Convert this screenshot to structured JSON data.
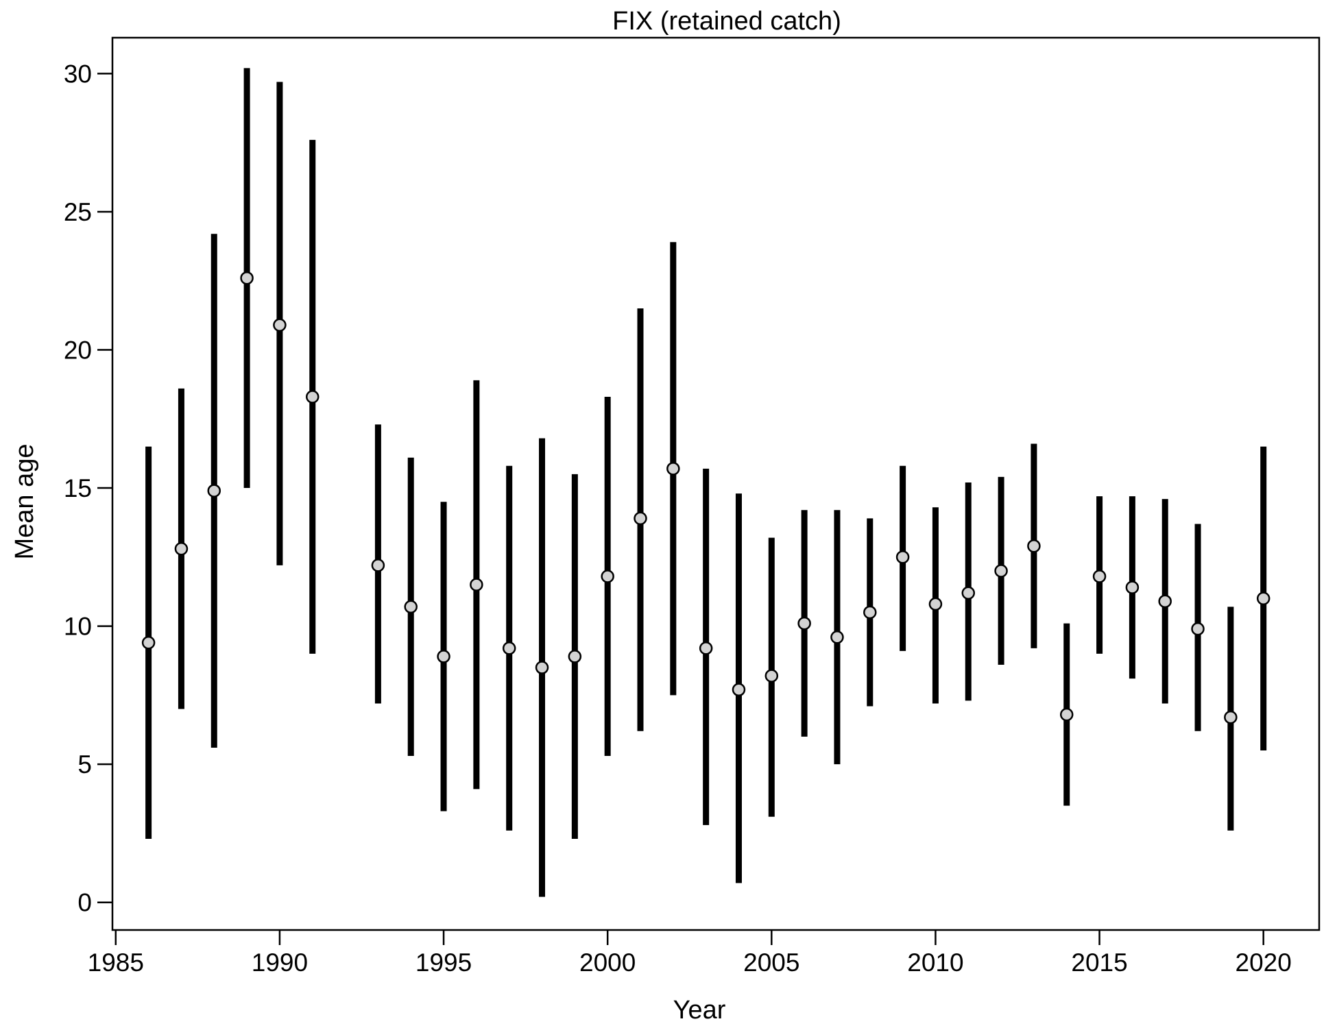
{
  "chart_data": {
    "type": "scatter",
    "title": "FIX (retained catch)",
    "xlabel": "Year",
    "ylabel": "Mean age",
    "xlim": [
      1984.9,
      2021.7
    ],
    "ylim": [
      -1.0,
      31.3
    ],
    "x_ticks": [
      "1985",
      "1990",
      "1995",
      "2000",
      "2005",
      "2010",
      "2015",
      "2020"
    ],
    "y_ticks": [
      "0",
      "5",
      "10",
      "15",
      "20",
      "25",
      "30"
    ],
    "grid": false,
    "legend": "none",
    "marker": {
      "fill": "#d3d3d3",
      "stroke": "#000000"
    },
    "interval_color": "#000000",
    "series": [
      {
        "points": [
          {
            "x": 1986,
            "y": 9.4,
            "low": 2.3,
            "high": 16.5
          },
          {
            "x": 1987,
            "y": 12.8,
            "low": 7.0,
            "high": 18.6
          },
          {
            "x": 1988,
            "y": 14.9,
            "low": 5.6,
            "high": 24.2
          },
          {
            "x": 1989,
            "y": 22.6,
            "low": 15.0,
            "high": 30.2
          },
          {
            "x": 1990,
            "y": 20.9,
            "low": 12.2,
            "high": 29.7
          },
          {
            "x": 1991,
            "y": 18.3,
            "low": 9.0,
            "high": 27.6
          },
          {
            "x": 1993,
            "y": 12.2,
            "low": 7.2,
            "high": 17.3
          },
          {
            "x": 1994,
            "y": 10.7,
            "low": 5.3,
            "high": 16.1
          },
          {
            "x": 1995,
            "y": 8.9,
            "low": 3.3,
            "high": 14.5
          },
          {
            "x": 1996,
            "y": 11.5,
            "low": 4.1,
            "high": 18.9
          },
          {
            "x": 1997,
            "y": 9.2,
            "low": 2.6,
            "high": 15.8
          },
          {
            "x": 1998,
            "y": 8.5,
            "low": 0.2,
            "high": 16.8
          },
          {
            "x": 1999,
            "y": 8.9,
            "low": 2.3,
            "high": 15.5
          },
          {
            "x": 2000,
            "y": 11.8,
            "low": 5.3,
            "high": 18.3
          },
          {
            "x": 2001,
            "y": 13.9,
            "low": 6.2,
            "high": 21.5
          },
          {
            "x": 2002,
            "y": 15.7,
            "low": 7.5,
            "high": 23.9
          },
          {
            "x": 2003,
            "y": 9.2,
            "low": 2.8,
            "high": 15.7
          },
          {
            "x": 2004,
            "y": 7.7,
            "low": 0.7,
            "high": 14.8
          },
          {
            "x": 2005,
            "y": 8.2,
            "low": 3.1,
            "high": 13.2
          },
          {
            "x": 2006,
            "y": 10.1,
            "low": 6.0,
            "high": 14.2
          },
          {
            "x": 2007,
            "y": 9.6,
            "low": 5.0,
            "high": 14.2
          },
          {
            "x": 2008,
            "y": 10.5,
            "low": 7.1,
            "high": 13.9
          },
          {
            "x": 2009,
            "y": 12.5,
            "low": 9.1,
            "high": 15.8
          },
          {
            "x": 2010,
            "y": 10.8,
            "low": 7.2,
            "high": 14.3
          },
          {
            "x": 2011,
            "y": 11.2,
            "low": 7.3,
            "high": 15.2
          },
          {
            "x": 2012,
            "y": 12.0,
            "low": 8.6,
            "high": 15.4
          },
          {
            "x": 2013,
            "y": 12.9,
            "low": 9.2,
            "high": 16.6
          },
          {
            "x": 2014,
            "y": 6.8,
            "low": 3.5,
            "high": 10.1
          },
          {
            "x": 2015,
            "y": 11.8,
            "low": 9.0,
            "high": 14.7
          },
          {
            "x": 2016,
            "y": 11.4,
            "low": 8.1,
            "high": 14.7
          },
          {
            "x": 2017,
            "y": 10.9,
            "low": 7.2,
            "high": 14.6
          },
          {
            "x": 2018,
            "y": 9.9,
            "low": 6.2,
            "high": 13.7
          },
          {
            "x": 2019,
            "y": 6.7,
            "low": 2.6,
            "high": 10.7
          },
          {
            "x": 2020,
            "y": 11.0,
            "low": 5.5,
            "high": 16.5
          }
        ]
      }
    ]
  }
}
